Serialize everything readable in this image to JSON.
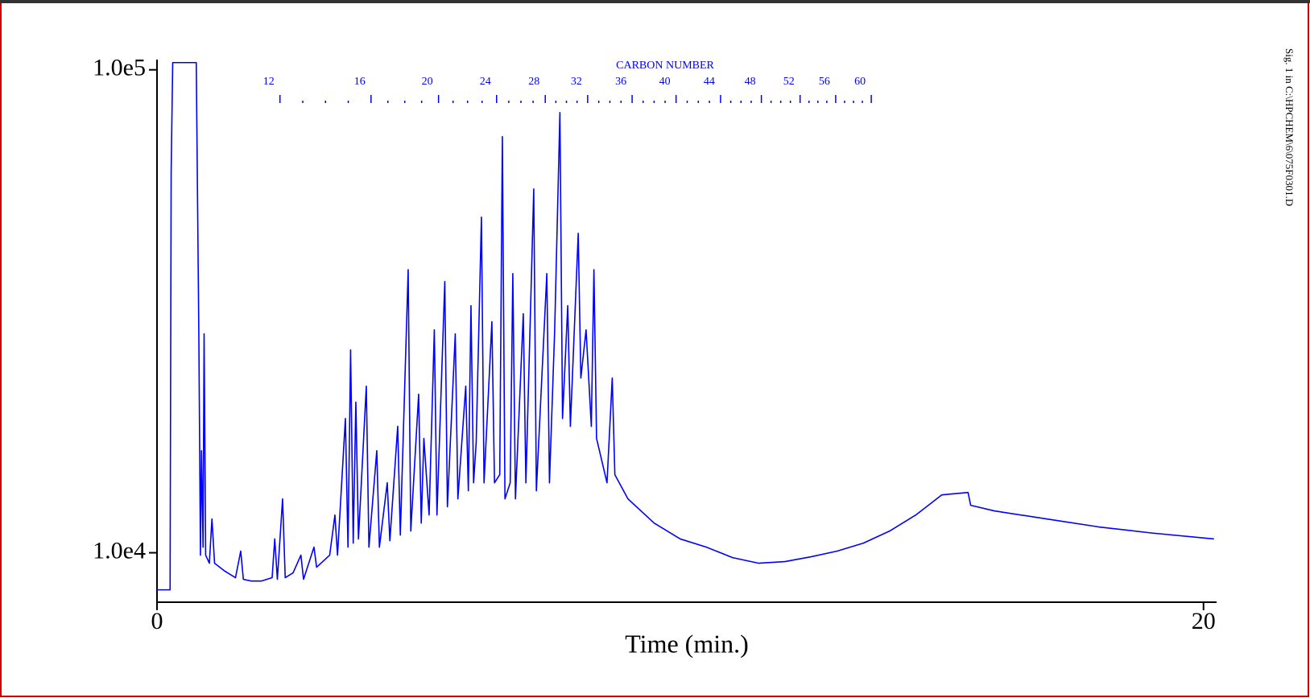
{
  "chart_data": {
    "type": "line",
    "side_text": "Sig. 1 in C:\\HPCHEM\\6\\075F0301.D",
    "xlabel": "Time (min.)",
    "yscale": "log",
    "grid": false,
    "color": "#0000ff",
    "xlim": [
      0,
      20.25
    ],
    "xticks": [
      0,
      20
    ],
    "ylim": [
      7900,
      105000
    ],
    "yticks": [
      {
        "value": 100000,
        "label": "1.0e5"
      },
      {
        "value": 10000,
        "label": "1.0e4"
      }
    ],
    "carbon_scale": {
      "title": "CARBON NUMBER",
      "labels": [
        12,
        16,
        20,
        24,
        28,
        32,
        36,
        40,
        44,
        48,
        52,
        56,
        60
      ],
      "x": [
        2.35,
        4.09,
        5.38,
        6.49,
        7.42,
        8.23,
        9.08,
        9.92,
        10.77,
        11.55,
        12.29,
        12.97,
        13.65
      ]
    },
    "x": [
      0,
      0.25,
      0.27,
      0.3,
      0.75,
      0.8,
      0.83,
      0.85,
      0.88,
      0.9,
      0.93,
      1.0,
      1.05,
      1.1,
      1.3,
      1.5,
      1.6,
      1.65,
      1.8,
      2.0,
      2.2,
      2.25,
      2.3,
      2.4,
      2.45,
      2.6,
      2.75,
      2.8,
      3.0,
      3.05,
      3.3,
      3.4,
      3.45,
      3.6,
      3.65,
      3.7,
      3.75,
      3.8,
      3.85,
      4.0,
      4.05,
      4.2,
      4.25,
      4.4,
      4.45,
      4.6,
      4.65,
      4.8,
      4.85,
      5.0,
      5.05,
      5.1,
      5.2,
      5.3,
      5.35,
      5.5,
      5.55,
      5.7,
      5.75,
      5.9,
      5.95,
      6.0,
      6.05,
      6.1,
      6.2,
      6.25,
      6.4,
      6.45,
      6.55,
      6.6,
      6.65,
      6.75,
      6.8,
      6.85,
      7.0,
      7.05,
      7.2,
      7.25,
      7.45,
      7.5,
      7.6,
      7.7,
      7.75,
      7.85,
      7.9,
      8.05,
      8.1,
      8.2,
      8.3,
      8.35,
      8.4,
      8.6,
      8.7,
      8.75,
      9.0,
      9.5,
      10.0,
      10.5,
      11.0,
      11.5,
      12.0,
      12.5,
      13.0,
      13.5,
      14.0,
      14.5,
      15.0,
      15.5,
      15.55,
      16.0,
      17.0,
      18.0,
      19.0,
      20.2
    ],
    "values": [
      8380,
      8380,
      61200,
      103500,
      103500,
      27860,
      9886,
      16270,
      10270,
      28400,
      9886,
      9513,
      11750,
      9513,
      9155,
      8880,
      10080,
      8810,
      8740,
      8740,
      8880,
      10680,
      8810,
      12930,
      8880,
      9086,
      9886,
      8810,
      10270,
      9333,
      9886,
      11970,
      9886,
      18970,
      10270,
      26300,
      10470,
      20510,
      10680,
      22130,
      10270,
      16270,
      10270,
      13960,
      10590,
      18270,
      10880,
      38560,
      11090,
      21290,
      11520,
      17250,
      11970,
      28950,
      11970,
      36450,
      12450,
      28400,
      12930,
      22130,
      13440,
      32480,
      13960,
      16910,
      49550,
      13960,
      30090,
      13960,
      14510,
      72720,
      12930,
      13960,
      37860,
      12930,
      31260,
      13960,
      56660,
      13440,
      37860,
      13960,
      28950,
      81560,
      18970,
      32480,
      18270,
      45870,
      23000,
      28950,
      18270,
      38560,
      17250,
      13960,
      23000,
      14510,
      12930,
      11520,
      10680,
      10270,
      9772,
      9513,
      9587,
      9810,
      10080,
      10470,
      11090,
      11970,
      13180,
      13330,
      12540,
      12210,
      11750,
      11310,
      10990,
      10680
    ]
  }
}
